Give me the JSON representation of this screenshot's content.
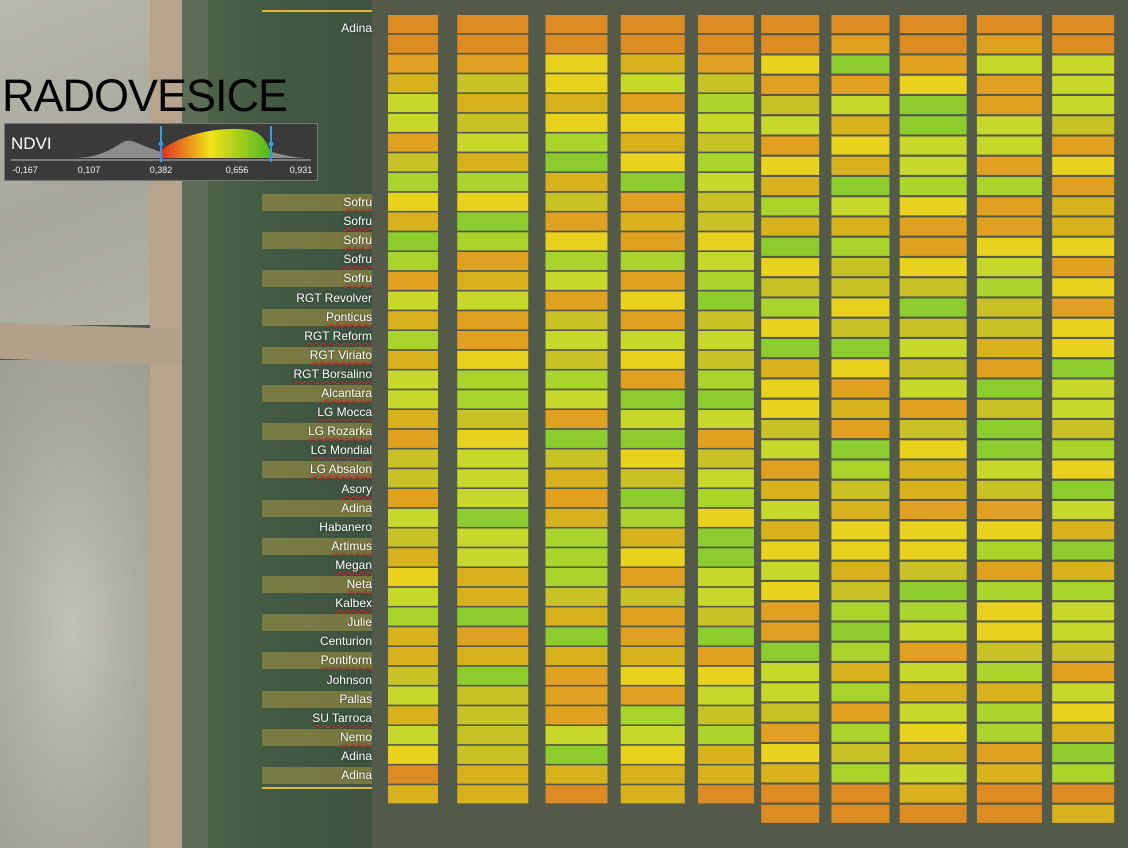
{
  "title": "RADOVESICE",
  "legend": {
    "index_label": "NDVI",
    "ticks": [
      "-0,167",
      "0,107",
      "0,382",
      "0,656",
      "0,931"
    ],
    "range_low": "0,382",
    "range_high": "0,931",
    "colors": {
      "low": "#e0301e",
      "mid": "#f2e21a",
      "high": "#4fb81f"
    }
  },
  "varieties": {
    "top": "Adina",
    "rows": [
      {
        "label": "Sofru",
        "squiggle": true,
        "band": true
      },
      {
        "label": "Sofru",
        "squiggle": true,
        "band": false
      },
      {
        "label": "Sofru",
        "squiggle": true,
        "band": true
      },
      {
        "label": "Sofru",
        "squiggle": true,
        "band": false
      },
      {
        "label": "Sofru",
        "squiggle": true,
        "band": true
      },
      {
        "label": "RGT Revolver",
        "squiggle": false,
        "band": false
      },
      {
        "label": "Ponticus",
        "squiggle": true,
        "band": true
      },
      {
        "label": "RGT Reform",
        "squiggle": true,
        "band": false
      },
      {
        "label": "RGT Viriato",
        "squiggle": true,
        "band": true
      },
      {
        "label": "RGT Borsalino",
        "squiggle": true,
        "band": false
      },
      {
        "label": "Alcantara",
        "squiggle": true,
        "band": true
      },
      {
        "label": "LG Mocca",
        "squiggle": true,
        "band": false
      },
      {
        "label": "LG Rozarka",
        "squiggle": true,
        "band": true
      },
      {
        "label": "LG Mondial",
        "squiggle": true,
        "band": false
      },
      {
        "label": "LG Absalon",
        "squiggle": true,
        "band": true
      },
      {
        "label": "Asory",
        "squiggle": true,
        "band": false
      },
      {
        "label": "Adina",
        "squiggle": false,
        "band": true
      },
      {
        "label": "Habanero",
        "squiggle": false,
        "band": false
      },
      {
        "label": "Artimus",
        "squiggle": true,
        "band": true
      },
      {
        "label": "Megan",
        "squiggle": true,
        "band": false
      },
      {
        "label": "Neta",
        "squiggle": true,
        "band": true
      },
      {
        "label": "Kalbex",
        "squiggle": true,
        "band": false
      },
      {
        "label": "Julie",
        "squiggle": false,
        "band": true
      },
      {
        "label": "Centurion",
        "squiggle": false,
        "band": false
      },
      {
        "label": "Pontiform",
        "squiggle": true,
        "band": true
      },
      {
        "label": "Johnson",
        "squiggle": false,
        "band": false
      },
      {
        "label": "Pallas",
        "squiggle": false,
        "band": true
      },
      {
        "label": "SU Tarroca",
        "squiggle": true,
        "band": false
      },
      {
        "label": "Nemo",
        "squiggle": true,
        "band": true
      },
      {
        "label": "Adina",
        "squiggle": false,
        "band": false
      },
      {
        "label": "Adina",
        "squiggle": false,
        "band": true
      }
    ]
  }
}
